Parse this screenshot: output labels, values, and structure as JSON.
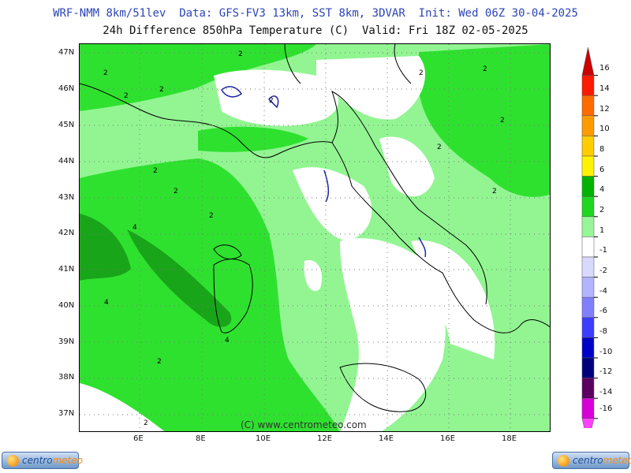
{
  "header": {
    "line1": "WRF-NMM 8km/51lev  Data: GFS-FV3 13km, SST 8km, 3DVAR  Init: Wed 06Z 30-04-2025",
    "line2": "24h Difference 850hPa Temperature (C)  Valid: Fri 18Z 02-05-2025"
  },
  "map": {
    "latitude_labels": [
      "47N",
      "46N",
      "45N",
      "44N",
      "43N",
      "42N",
      "41N",
      "40N",
      "39N",
      "38N",
      "37N"
    ],
    "longitude_labels": [
      "6E",
      "8E",
      "10E",
      "12E",
      "14E",
      "16E",
      "18E"
    ],
    "contour_labels": [
      "2",
      "2",
      "2",
      "2",
      "2",
      "2",
      "2",
      "2",
      "2",
      "2",
      "2",
      "2",
      "2",
      "4",
      "4",
      "4",
      "2",
      "2"
    ],
    "copyright": "(C) www.centrometeo.com",
    "colors": {
      "light_green": "#92f592",
      "green": "#2fe12f",
      "dark_green": "#19a519",
      "white": "#ffffff",
      "coast": "#000000",
      "lakes": "#1d27a6"
    }
  },
  "color_scale": {
    "labels": [
      "16",
      "14",
      "12",
      "10",
      "8",
      "6",
      "4",
      "2",
      "1",
      "-1",
      "-2",
      "-4",
      "-6",
      "-8",
      "-10",
      "-12",
      "-14",
      "-16"
    ],
    "colors": [
      "#cc0000",
      "#ff1a00",
      "#ff6a00",
      "#ff9b00",
      "#ffcd00",
      "#fff200",
      "#02b402",
      "#1ed71e",
      "#98f698",
      "#ffffff",
      "#d9d9ff",
      "#b3b3ff",
      "#8080ff",
      "#3d3dff",
      "#0000c8",
      "#00007f",
      "#5a0060",
      "#d800d8",
      "#ff40ff"
    ]
  },
  "footer": {
    "logo_left": {
      "part1": "centro",
      "part2": "meteo"
    },
    "logo_right": {
      "part1": "centro",
      "part2": "meteo"
    }
  }
}
